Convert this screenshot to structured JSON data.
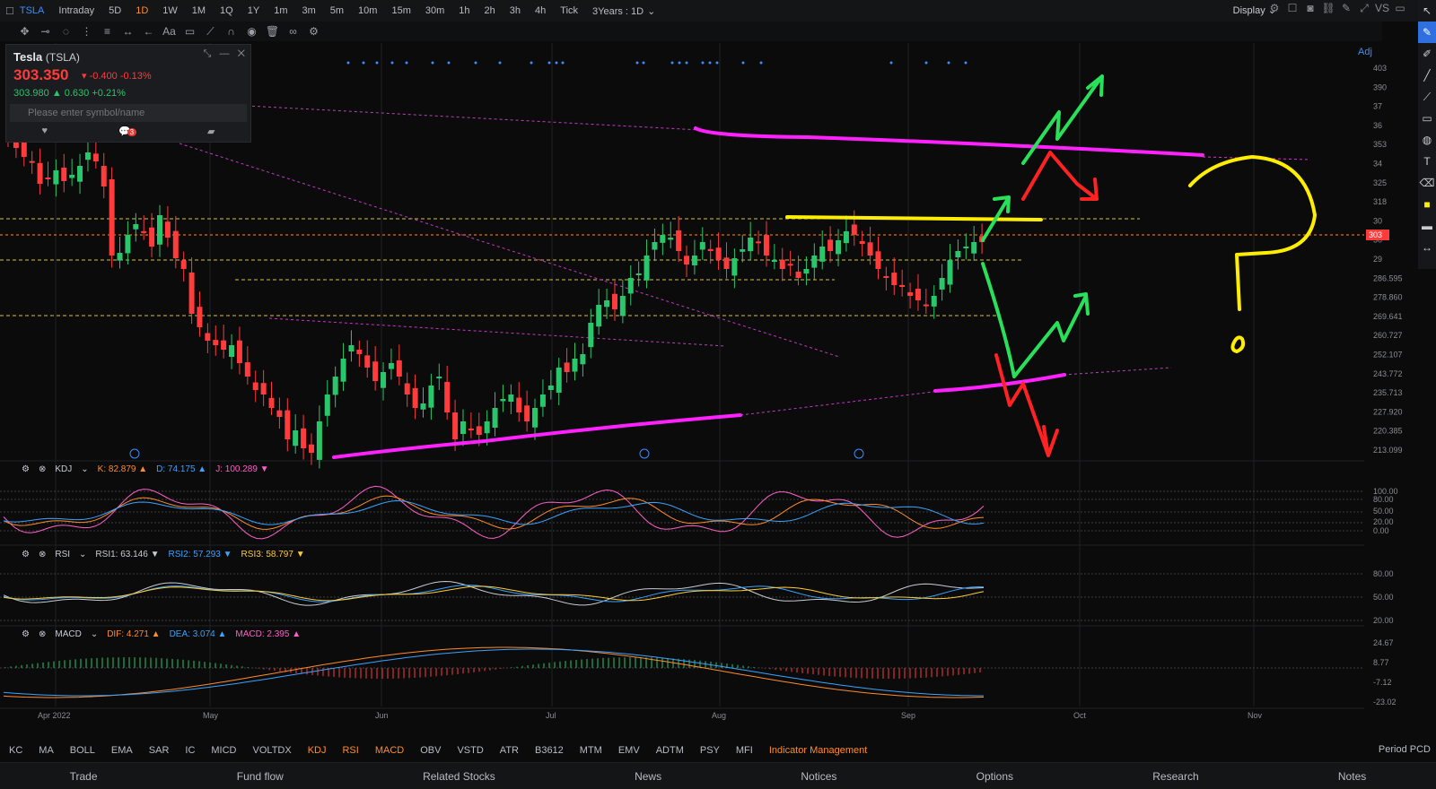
{
  "topbar": {
    "symbol": "TSLA",
    "timeframes": [
      "Intraday",
      "5D",
      "1D",
      "1W",
      "1M",
      "1Q",
      "1Y",
      "1m",
      "3m",
      "5m",
      "10m",
      "15m",
      "30m",
      "1h",
      "2h",
      "3h",
      "4h",
      "Tick"
    ],
    "active_timeframe": "1D",
    "range": "3Years : 1D",
    "display": "Display",
    "right_label": "VS"
  },
  "quote": {
    "name": "Tesla",
    "ticker": "(TSLA)",
    "price": "303.350",
    "change": "-0.400 -0.13%",
    "after_hours": "303.980 ▲ 0.630 +0.21%",
    "search_placeholder": "Please enter symbol/name",
    "comment_badge": "3"
  },
  "adj_label": "Adj",
  "price_axis": [
    "403",
    "390",
    "37",
    "36",
    "353",
    "34",
    "325",
    "318",
    "30",
    "30",
    "29",
    "286.595",
    "278.860",
    "269.641",
    "260.727",
    "252.107",
    "243.772",
    "235.713",
    "227.920",
    "220.385",
    "213.099"
  ],
  "x_axis": [
    "Apr 2022",
    "May",
    "Jun",
    "Jul",
    "Aug",
    "Sep",
    "Oct",
    "Nov"
  ],
  "kdj": {
    "label": "KDJ",
    "k": "K: 82.879 ▲",
    "d": "D: 74.175 ▲",
    "j": "J: 100.289 ▼",
    "axis": [
      "100.00",
      "80.00",
      "50.00",
      "20.00",
      "0.00"
    ]
  },
  "rsi": {
    "label": "RSI",
    "r1": "RSI1: 63.146 ▼",
    "r2": "RSI2: 57.293 ▼",
    "r3": "RSI3: 58.797 ▼",
    "axis": [
      "80.00",
      "50.00",
      "20.00"
    ]
  },
  "macd": {
    "label": "MACD",
    "dif": "DIF: 4.271 ▲",
    "dea": "DEA: 3.074 ▲",
    "macd": "MACD: 2.395 ▲",
    "axis": [
      "24.67",
      "8.77",
      "-7.12",
      "-23.02"
    ]
  },
  "indicators": [
    "KC",
    "MA",
    "BOLL",
    "EMA",
    "SAR",
    "IC",
    "MICD",
    "VOLTDX",
    "KDJ",
    "RSI",
    "MACD",
    "OBV",
    "VSTD",
    "ATR",
    "B3612",
    "MTM",
    "EMV",
    "ADTM",
    "PSY",
    "MFI",
    "Indicator Management"
  ],
  "active_indicators": [
    "KDJ",
    "RSI",
    "MACD",
    "Indicator Management"
  ],
  "period_label": "Period PCD",
  "bottom_nav": [
    "Trade",
    "Fund flow",
    "Related Stocks",
    "News",
    "Notices",
    "Options",
    "Research",
    "Notes"
  ],
  "colors": {
    "up": "#29c66b",
    "down": "#ff3b3b",
    "magenta": "#ff22ff",
    "yellow": "#ffee00",
    "accent": "#ff8c2a"
  }
}
